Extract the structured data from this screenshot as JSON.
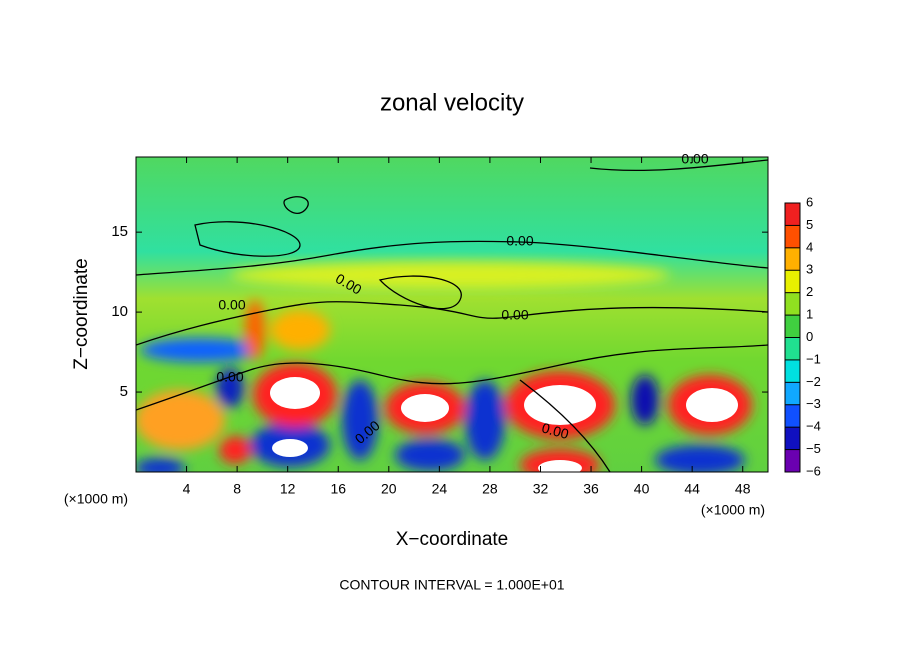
{
  "chart_data": {
    "type": "contour",
    "title": "zonal velocity",
    "x_label": "X−coordinate",
    "y_label": "Z−coordinate",
    "x_unit": "(×1000 m)",
    "y_unit": "(×1000 m)",
    "annotation": "CONTOUR INTERVAL = 1.000E+01",
    "xlim": [
      0,
      50
    ],
    "xticks": [
      4,
      8,
      12,
      16,
      20,
      24,
      28,
      32,
      36,
      40,
      44,
      48
    ],
    "ylim": [
      0,
      19.7
    ],
    "yticks": [
      5,
      10,
      15
    ],
    "contour_labels": [
      "0.00",
      "0.00",
      "0.00",
      "0.00",
      "0.00",
      "0.00",
      "0.00",
      "0.00"
    ],
    "colorbar": {
      "ticks": [
        {
          "value": -6,
          "label": "−6"
        },
        {
          "value": -5,
          "label": "−5"
        },
        {
          "value": -4,
          "label": "−4"
        },
        {
          "value": -3,
          "label": "−3"
        },
        {
          "value": -2,
          "label": "−2"
        },
        {
          "value": -1,
          "label": "−1"
        },
        0,
        1,
        2,
        3,
        4,
        5,
        6
      ],
      "colors": [
        "#6a00b0",
        "#1010c0",
        "#1050ff",
        "#10a8ff",
        "#00e0e0",
        "#20e090",
        "#40d040",
        "#90e020",
        "#e8f000",
        "#ffb000",
        "#ff5000",
        "#f02020"
      ]
    }
  }
}
